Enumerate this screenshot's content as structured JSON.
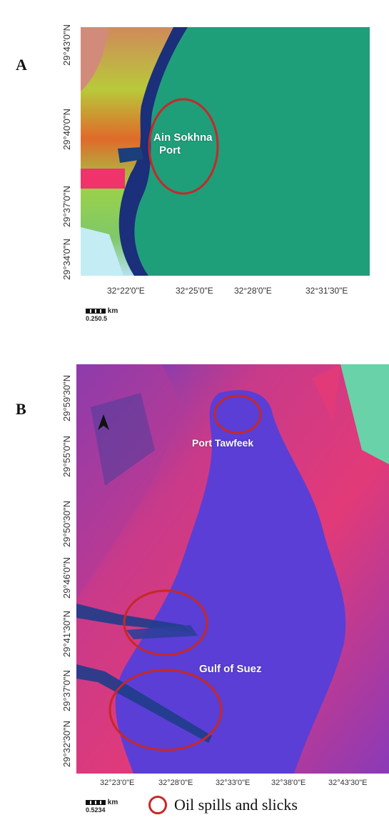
{
  "panel_a": {
    "letter": "A",
    "lat_labels": [
      "29°43'0\"N",
      "29°40'0\"N",
      "29°37'0\"N",
      "29°34'0\"N"
    ],
    "lon_labels": [
      "32°22'0\"E",
      "32°25'0\"E",
      "32°28'0\"E",
      "32°31'30\"E"
    ],
    "place_label_line1": "Ain Sokhna",
    "place_label_line2": "Port",
    "scale_unit": "km",
    "scale_ticks": "0.250.5"
  },
  "panel_b": {
    "letter": "B",
    "lat_labels": [
      "29°59'30\"N",
      "29°55'0\"N",
      "29°50'30\"N",
      "29°46'0\"N",
      "29°41'30\"N",
      "29°37'0\"N",
      "29°32'30\"N"
    ],
    "lon_labels": [
      "32°23'0\"E",
      "32°28'0\"E",
      "32°33'0\"E",
      "32°38'0\"E",
      "32°43'30\"E"
    ],
    "place_label_top": "Port Tawfeek",
    "place_label_bottom": "Gulf of Suez",
    "scale_unit": "km",
    "scale_ticks": "0.5234"
  },
  "legend": {
    "label": "Oil spills and slicks",
    "circle_color": "#c62828"
  }
}
